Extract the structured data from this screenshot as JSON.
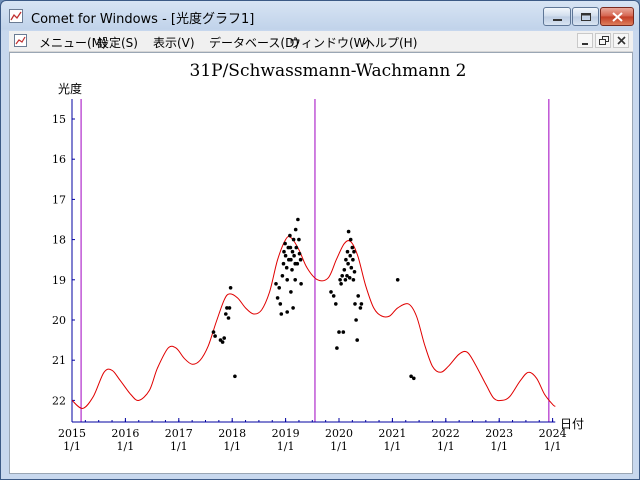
{
  "window": {
    "title": "Comet for Windows - [光度グラフ1]"
  },
  "menubar": {
    "items": [
      "メニュー(M)",
      "設定(S)",
      "表示(V)",
      "データベース(D)",
      "ウィンドウ(W)",
      "ヘルプ(H)"
    ]
  },
  "icons": {
    "app": "chart-app-icon",
    "mdi_child": "chart-doc-icon",
    "minimize": "minimize-icon",
    "maximize": "maximize-icon",
    "close": "close-icon",
    "restore": "restore-icon"
  },
  "colors": {
    "curve": "#e00000",
    "markers": "#a000c0",
    "axis": "#0000a0",
    "points": "#000000"
  },
  "chart_data": {
    "type": "scatter",
    "title": "31P/Schwassmann-Wachmann 2",
    "ylabel": "光度",
    "xlabel": "日付",
    "y_inverted": true,
    "ylim": [
      14.7,
      22.2
    ],
    "xlim": [
      2015.0,
      2024.05
    ],
    "y_ticks": [
      15,
      16,
      17,
      18,
      19,
      20,
      21,
      22
    ],
    "x_ticks": [
      {
        "year": 2015,
        "label": "2015",
        "sublabel": "1/1"
      },
      {
        "year": 2016,
        "label": "2016",
        "sublabel": "1/1"
      },
      {
        "year": 2017,
        "label": "2017",
        "sublabel": "1/1"
      },
      {
        "year": 2018,
        "label": "2018",
        "sublabel": "1/1"
      },
      {
        "year": 2019,
        "label": "2019",
        "sublabel": "1/1"
      },
      {
        "year": 2020,
        "label": "2020",
        "sublabel": "1/1"
      },
      {
        "year": 2021,
        "label": "2021",
        "sublabel": "1/1"
      },
      {
        "year": 2022,
        "label": "2022",
        "sublabel": "1/1"
      },
      {
        "year": 2023,
        "label": "2023",
        "sublabel": "1/1"
      },
      {
        "year": 2024,
        "label": "2024",
        "sublabel": "1/1"
      }
    ],
    "vertical_markers": [
      2015.17,
      2019.55,
      2023.93
    ],
    "predicted_curve": [
      [
        2015.0,
        22.0
      ],
      [
        2015.2,
        22.2
      ],
      [
        2015.4,
        21.9
      ],
      [
        2015.6,
        21.3
      ],
      [
        2015.75,
        21.25
      ],
      [
        2015.9,
        21.5
      ],
      [
        2016.1,
        21.85
      ],
      [
        2016.25,
        22.0
      ],
      [
        2016.45,
        21.75
      ],
      [
        2016.6,
        21.2
      ],
      [
        2016.8,
        20.7
      ],
      [
        2016.95,
        20.7
      ],
      [
        2017.1,
        20.95
      ],
      [
        2017.25,
        21.1
      ],
      [
        2017.4,
        21.0
      ],
      [
        2017.55,
        20.65
      ],
      [
        2017.7,
        20.05
      ],
      [
        2017.85,
        19.5
      ],
      [
        2017.95,
        19.35
      ],
      [
        2018.1,
        19.45
      ],
      [
        2018.25,
        19.7
      ],
      [
        2018.4,
        19.85
      ],
      [
        2018.55,
        19.75
      ],
      [
        2018.7,
        19.3
      ],
      [
        2018.85,
        18.5
      ],
      [
        2019.0,
        18.0
      ],
      [
        2019.1,
        17.95
      ],
      [
        2019.25,
        18.25
      ],
      [
        2019.4,
        18.7
      ],
      [
        2019.6,
        19.0
      ],
      [
        2019.8,
        18.95
      ],
      [
        2019.95,
        18.5
      ],
      [
        2020.1,
        18.1
      ],
      [
        2020.22,
        18.05
      ],
      [
        2020.35,
        18.4
      ],
      [
        2020.5,
        19.15
      ],
      [
        2020.65,
        19.7
      ],
      [
        2020.8,
        19.9
      ],
      [
        2020.95,
        19.9
      ],
      [
        2021.1,
        19.7
      ],
      [
        2021.3,
        19.6
      ],
      [
        2021.45,
        19.9
      ],
      [
        2021.6,
        20.6
      ],
      [
        2021.75,
        21.15
      ],
      [
        2021.9,
        21.3
      ],
      [
        2022.05,
        21.15
      ],
      [
        2022.25,
        20.85
      ],
      [
        2022.4,
        20.8
      ],
      [
        2022.55,
        21.1
      ],
      [
        2022.75,
        21.6
      ],
      [
        2022.9,
        21.95
      ],
      [
        2023.05,
        22.0
      ],
      [
        2023.2,
        21.9
      ],
      [
        2023.4,
        21.5
      ],
      [
        2023.55,
        21.3
      ],
      [
        2023.7,
        21.45
      ],
      [
        2023.85,
        21.85
      ],
      [
        2024.0,
        22.1
      ],
      [
        2024.05,
        22.15
      ]
    ],
    "observations": [
      [
        2017.65,
        20.3
      ],
      [
        2017.68,
        20.4
      ],
      [
        2017.78,
        20.5
      ],
      [
        2017.82,
        20.55
      ],
      [
        2017.85,
        20.45
      ],
      [
        2017.88,
        19.85
      ],
      [
        2017.9,
        19.7
      ],
      [
        2017.93,
        19.95
      ],
      [
        2017.95,
        19.7
      ],
      [
        2017.97,
        19.2
      ],
      [
        2018.05,
        21.4
      ],
      [
        2018.82,
        19.1
      ],
      [
        2018.85,
        19.45
      ],
      [
        2018.88,
        19.2
      ],
      [
        2018.9,
        19.6
      ],
      [
        2018.92,
        19.85
      ],
      [
        2018.94,
        18.9
      ],
      [
        2018.96,
        18.6
      ],
      [
        2018.97,
        18.3
      ],
      [
        2018.99,
        18.1
      ],
      [
        2019.0,
        18.4
      ],
      [
        2019.02,
        18.7
      ],
      [
        2019.03,
        19.0
      ],
      [
        2019.05,
        18.2
      ],
      [
        2019.06,
        18.5
      ],
      [
        2019.08,
        17.9
      ],
      [
        2019.09,
        18.2
      ],
      [
        2019.1,
        18.5
      ],
      [
        2019.12,
        18.75
      ],
      [
        2019.13,
        18.3
      ],
      [
        2019.15,
        18.0
      ],
      [
        2019.16,
        18.4
      ],
      [
        2019.18,
        18.6
      ],
      [
        2019.19,
        17.75
      ],
      [
        2019.2,
        18.2
      ],
      [
        2019.22,
        18.6
      ],
      [
        2019.23,
        17.5
      ],
      [
        2019.25,
        18.0
      ],
      [
        2019.26,
        18.35
      ],
      [
        2019.28,
        18.5
      ],
      [
        2019.29,
        19.1
      ],
      [
        2019.1,
        19.3
      ],
      [
        2019.14,
        19.7
      ],
      [
        2019.03,
        19.8
      ],
      [
        2019.18,
        19.0
      ],
      [
        2019.85,
        19.3
      ],
      [
        2019.9,
        19.4
      ],
      [
        2019.94,
        19.6
      ],
      [
        2019.96,
        20.7
      ],
      [
        2020.0,
        20.3
      ],
      [
        2020.02,
        19.0
      ],
      [
        2020.04,
        19.1
      ],
      [
        2020.06,
        18.9
      ],
      [
        2020.08,
        20.3
      ],
      [
        2020.1,
        18.75
      ],
      [
        2020.12,
        19.0
      ],
      [
        2020.13,
        18.5
      ],
      [
        2020.15,
        18.9
      ],
      [
        2020.16,
        18.3
      ],
      [
        2020.17,
        18.6
      ],
      [
        2020.18,
        17.8
      ],
      [
        2020.2,
        18.95
      ],
      [
        2020.21,
        18.4
      ],
      [
        2020.22,
        18.0
      ],
      [
        2020.23,
        18.7
      ],
      [
        2020.25,
        18.2
      ],
      [
        2020.26,
        18.5
      ],
      [
        2020.27,
        19.0
      ],
      [
        2020.28,
        18.3
      ],
      [
        2020.29,
        18.8
      ],
      [
        2020.3,
        19.6
      ],
      [
        2020.32,
        20.0
      ],
      [
        2020.34,
        20.5
      ],
      [
        2020.36,
        19.4
      ],
      [
        2020.4,
        19.7
      ],
      [
        2020.42,
        19.6
      ],
      [
        2021.1,
        19.0
      ],
      [
        2021.35,
        21.4
      ],
      [
        2021.4,
        21.45
      ]
    ]
  }
}
